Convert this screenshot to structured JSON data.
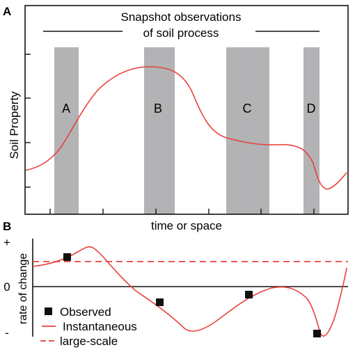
{
  "panel_a": {
    "label": "A",
    "title_line1": "Snapshot observations",
    "title_line2": "of soil process",
    "ylabel": "Soil Property",
    "xlabel": "time or space",
    "snapshots": [
      "A",
      "B",
      "C",
      "D"
    ],
    "colors": {
      "curve": "#e8413c",
      "curve_dark": "#b8603f",
      "band": "#b3b3b5",
      "axis": "#111111"
    }
  },
  "panel_b": {
    "label": "B",
    "ylabel": "rate of change",
    "tick_plus": "+",
    "tick_zero": "0",
    "tick_minus": "-",
    "legend": {
      "observed": "Observed",
      "instantaneous": "Instantaneous",
      "large_scale": "large-scale"
    },
    "colors": {
      "curve": "#e8413c",
      "marker": "#111111"
    }
  }
}
